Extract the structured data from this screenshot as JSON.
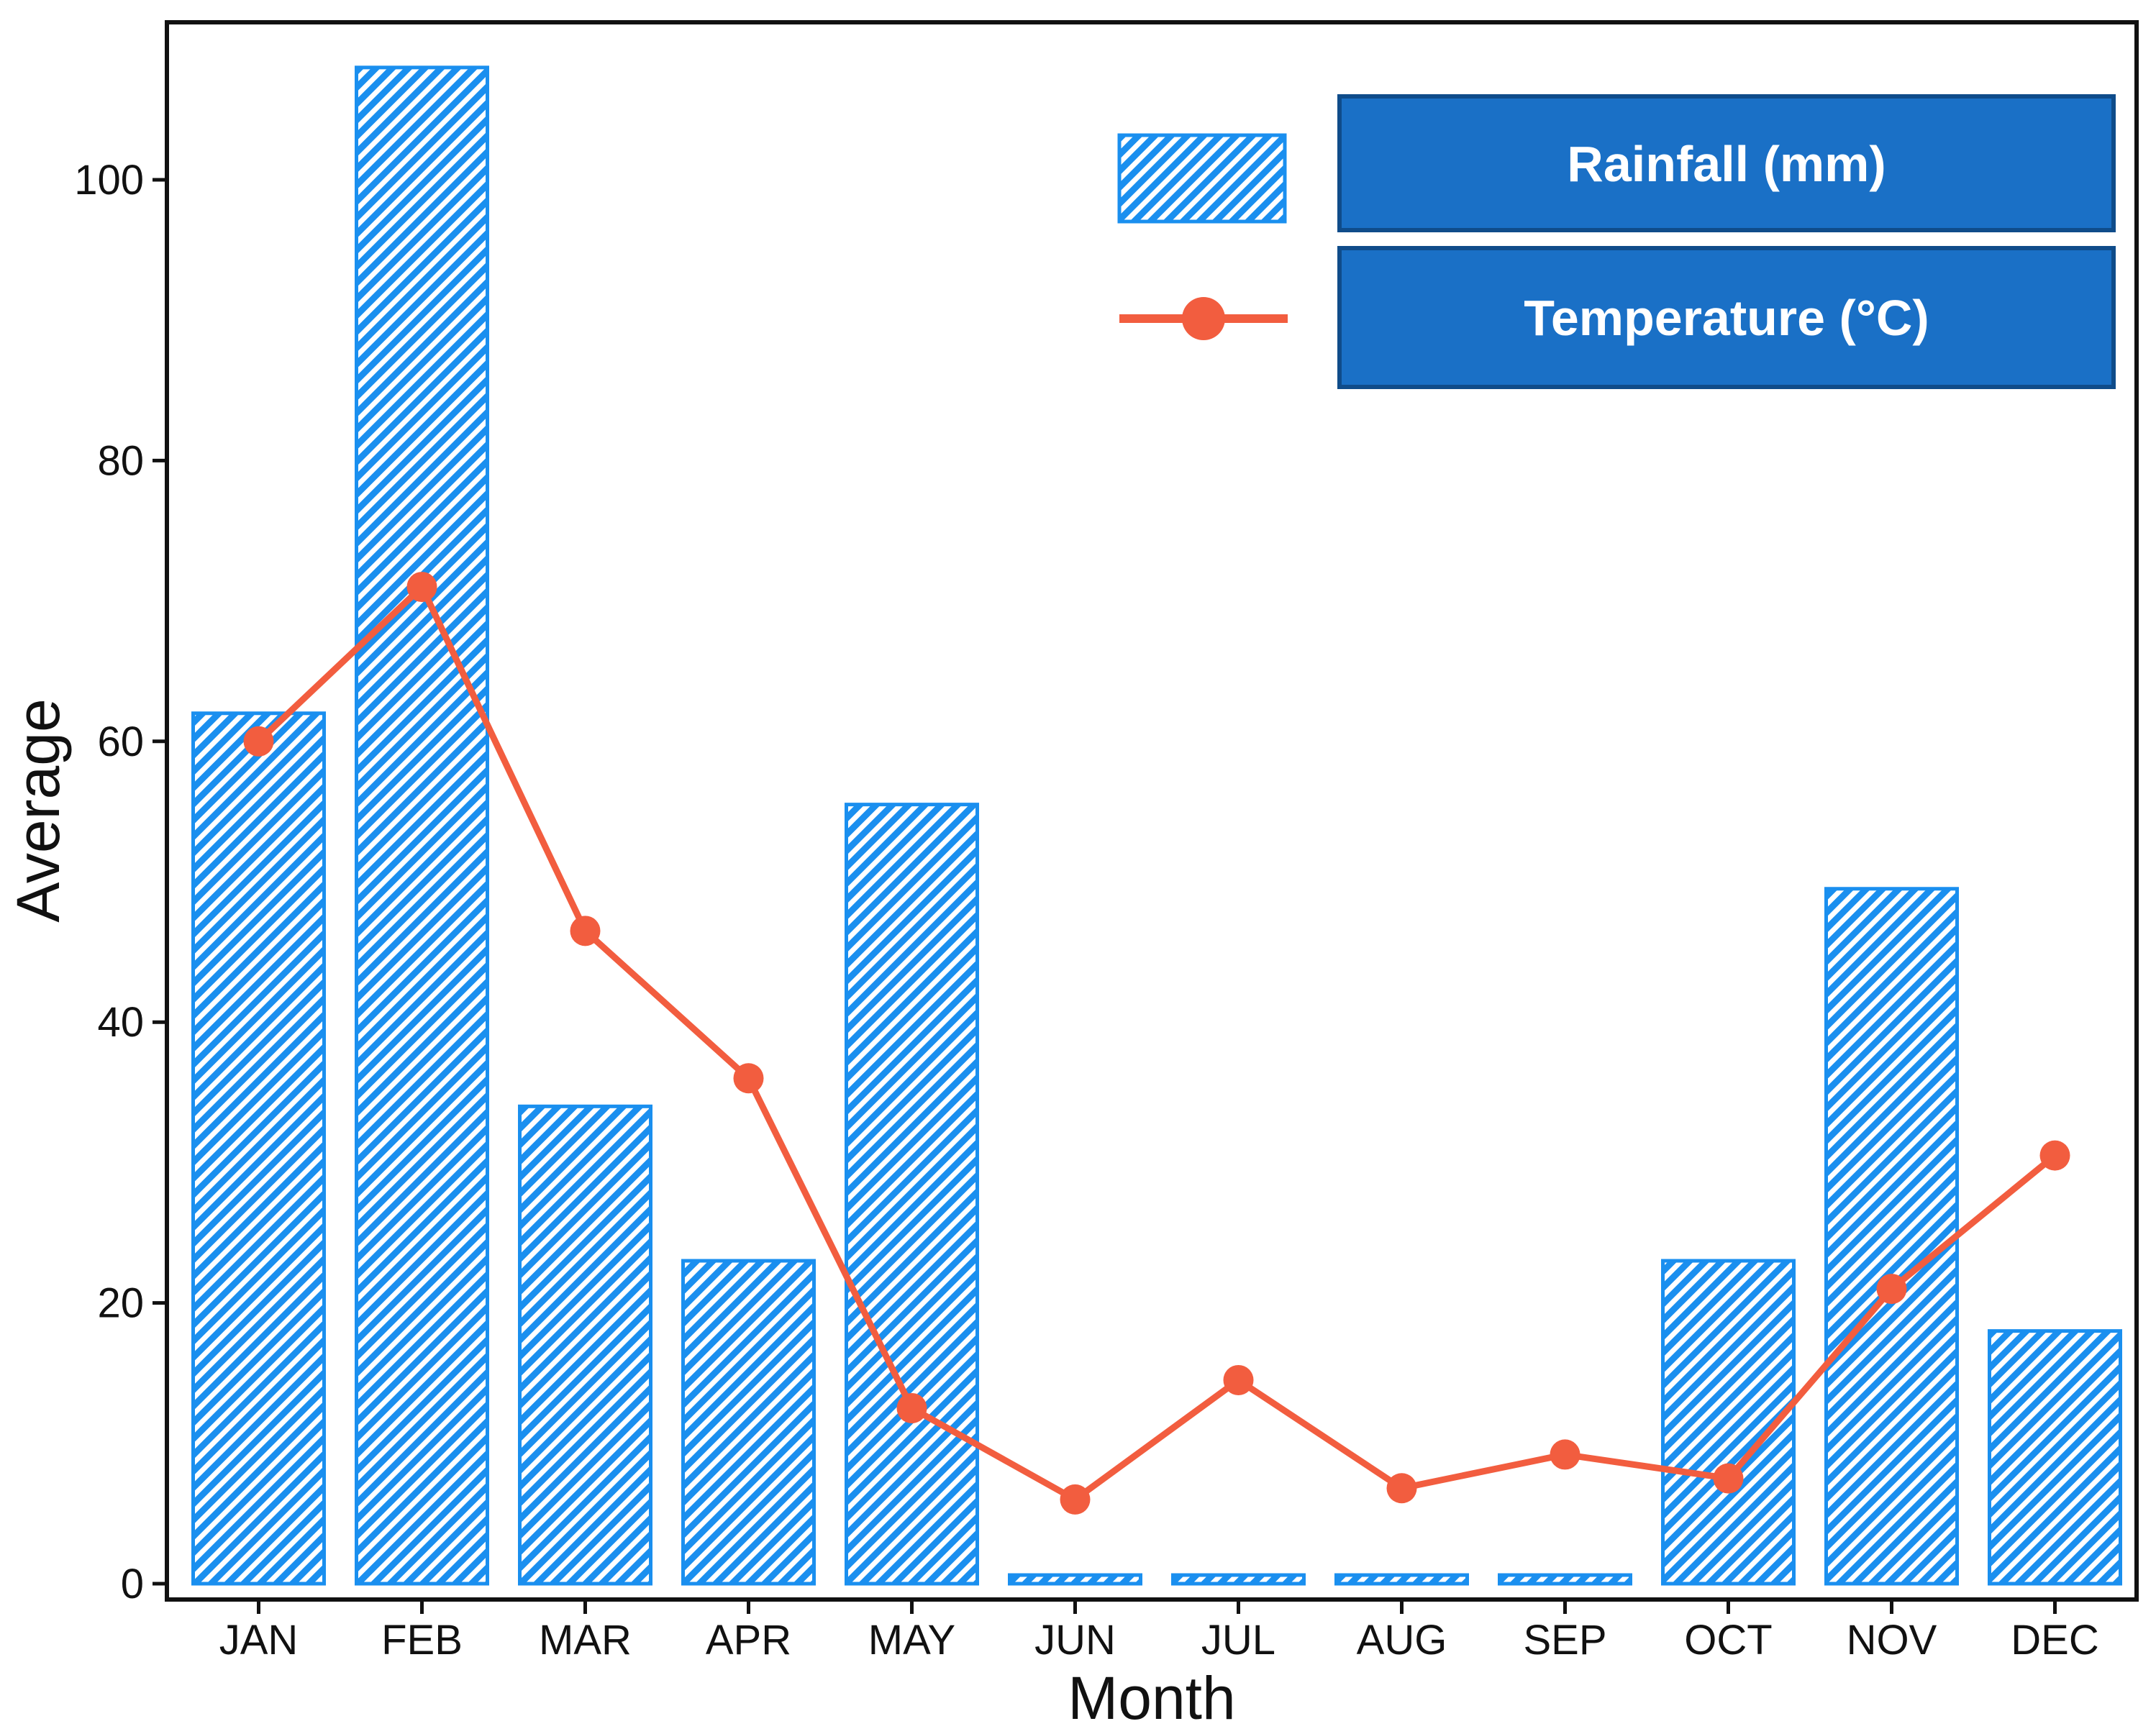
{
  "chart_data": {
    "type": "bar+line",
    "xlabel": "Month",
    "ylabel": "Average",
    "ylim": [
      0,
      110
    ],
    "yticks": [
      0,
      20,
      40,
      60,
      80,
      100
    ],
    "categories": [
      "JAN",
      "FEB",
      "MAR",
      "APR",
      "MAY",
      "JUN",
      "JUL",
      "AUG",
      "SEP",
      "OCT",
      "NOV",
      "DEC"
    ],
    "series": [
      {
        "name": "Rainfall (mm)",
        "kind": "bar",
        "values": [
          62,
          108,
          34,
          23,
          55.5,
          0.2,
          0.2,
          0.2,
          0.2,
          23,
          49.5,
          18
        ]
      },
      {
        "name": "Temperature (°C)",
        "kind": "line",
        "values": [
          60,
          71,
          46.5,
          36,
          12.5,
          6,
          14.5,
          6.8,
          9.2,
          7.5,
          21,
          30.5
        ]
      }
    ],
    "legend_position": "top-right",
    "grid": false
  },
  "colors": {
    "bar": "#1a8fef",
    "bar_hatch_bg": "#ffffff",
    "line": "#f25d3f",
    "legend_box": "#1a70c6",
    "legend_box_border": "#0f4c8a",
    "axis": "#111111"
  }
}
